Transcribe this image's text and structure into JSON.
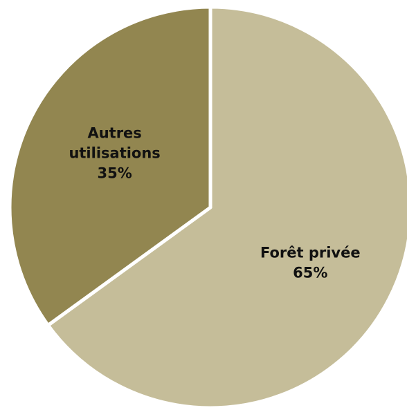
{
  "chart_data": {
    "type": "pie",
    "title": "",
    "slices": [
      {
        "label_lines": [
          "Forêt privée"
        ],
        "value": 65,
        "value_label": "65%",
        "color": "#c5bd99"
      },
      {
        "label_lines": [
          "Autres",
          "utilisations"
        ],
        "value": 35,
        "value_label": "35%",
        "color": "#928650"
      }
    ],
    "start_angle_deg": 0,
    "direction": "clockwise",
    "slice_separator_color": "#ffffff",
    "legend": "none",
    "data_labels": "inside"
  }
}
